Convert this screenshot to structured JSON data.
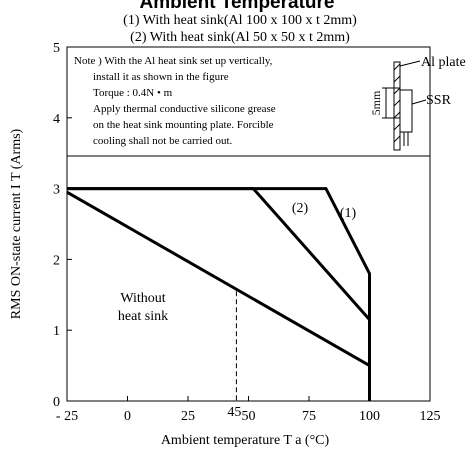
{
  "chart_data": {
    "type": "line",
    "title": "Ambient Temperature",
    "subtitle_lines": [
      "(1) With heat sink(Al 100 x 100 x t 2mm)",
      "(2) With heat sink(Al  50 x  50 x t 2mm)"
    ],
    "xlabel": "Ambient temperature T a (°C)",
    "ylabel": "RMS ON-state current I T (Arms)",
    "xlim": [
      -25,
      125
    ],
    "ylim": [
      0,
      5
    ],
    "x_ticks": [
      -25,
      0,
      25,
      50,
      75,
      100,
      125
    ],
    "x_tick_labels": [
      "- 25",
      "0",
      "25",
      "50",
      "75",
      "100",
      "125"
    ],
    "y_ticks": [
      0,
      1,
      2,
      3,
      4,
      5
    ],
    "y_tick_labels": [
      "0",
      "1",
      "2",
      "3",
      "4",
      "5"
    ],
    "grid": false,
    "series": [
      {
        "name": "(1)",
        "x": [
          -25,
          82,
          100,
          100
        ],
        "y": [
          3,
          3,
          1.8,
          0
        ]
      },
      {
        "name": "(2)",
        "x": [
          -25,
          52,
          100
        ],
        "y": [
          3,
          3,
          1.15
        ]
      },
      {
        "name": "Without heat sink",
        "x": [
          -25,
          100
        ],
        "y": [
          2.95,
          0.5
        ]
      }
    ],
    "annotations": {
      "series_labels": [
        "(2)",
        "(1)"
      ],
      "without_label": [
        "Without",
        "heat sink"
      ],
      "marker_45": {
        "label": "45",
        "x": 45
      },
      "note_lines": [
        "Note ) With the Al heat sink set up vertically,",
        "install it as shown in the figure",
        "Torque : 0.4N • m",
        "Apply thermal conductive silicone grease",
        "on the heat sink mounting plate. Forcible",
        "cooling shall not be carried out."
      ],
      "figure_labels": {
        "al_plate": "Al plate",
        "ssr": "SSR",
        "dim": "5mm"
      }
    }
  }
}
